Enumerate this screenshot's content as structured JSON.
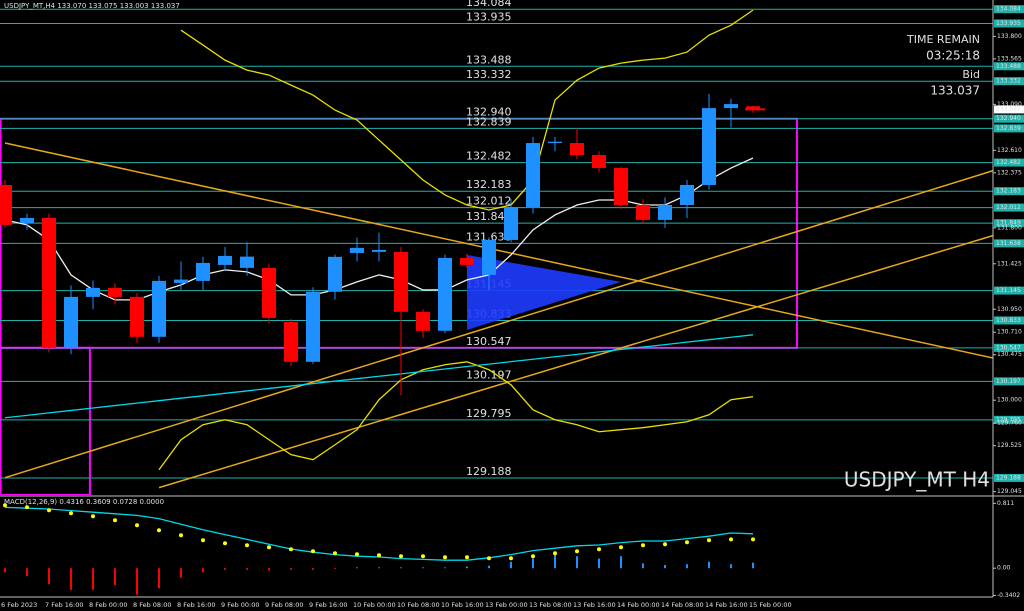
{
  "chart_data": [
    {
      "type": "candlestick",
      "header": "USDJPY_MT,H4  133.070 133.075 133.003 133.037",
      "title": "USDJPY_MT H4",
      "time_remain_label": "TIME REMAIN",
      "time_remain": "03:25:18",
      "bid_label": "Bid",
      "bid": 133.037,
      "categories": [
        "6 Feb 2023",
        null,
        "7 Feb 16:00",
        null,
        "8 Feb 00:00",
        null,
        "8 Feb 08:00",
        null,
        "8 Feb 16:00",
        null,
        "9 Feb 00:00",
        null,
        "9 Feb 08:00",
        null,
        "9 Feb 16:00",
        null,
        "10 Feb 00:00",
        null,
        "10 Feb 08:00",
        null,
        "10 Feb 16:00",
        null,
        "13 Feb 00:00",
        null,
        "13 Feb 08:00",
        null,
        "13 Feb 16:00",
        null,
        "14 Feb 00:00",
        null,
        "14 Feb 08:00",
        null,
        "14 Feb 16:00",
        null,
        "15 Feb 00:00"
      ],
      "open": [
        132.248,
        131.85,
        131.904,
        130.547,
        131.079,
        131.173,
        131.079,
        130.662,
        131.225,
        131.246,
        131.413,
        131.382,
        131.382,
        130.819,
        130.401,
        131.132,
        131.538,
        131.549,
        131.549,
        130.923,
        130.725,
        131.486,
        131.309,
        131.674,
        132.018,
        132.686,
        132.686,
        132.561,
        132.425,
        132.039,
        131.883,
        132.039,
        132.248,
        133.051,
        133.07
      ],
      "high": [
        132.3,
        131.95,
        131.95,
        131.2,
        131.25,
        131.22,
        131.12,
        131.3,
        131.45,
        131.5,
        131.6,
        131.65,
        131.42,
        130.85,
        131.18,
        131.52,
        131.7,
        131.75,
        131.6,
        130.95,
        131.52,
        131.53,
        131.7,
        132.1,
        132.75,
        132.75,
        132.84,
        132.6,
        132.44,
        132.1,
        132.12,
        132.3,
        133.2,
        133.15,
        133.075
      ],
      "low": [
        131.8,
        131.78,
        130.5,
        130.48,
        130.95,
        131,
        130.6,
        130.6,
        131.15,
        131.15,
        131.35,
        131.3,
        130.8,
        130.36,
        130.38,
        131.05,
        131.45,
        131.45,
        130.05,
        130.65,
        130.7,
        131.38,
        131.15,
        131.65,
        131.95,
        132.6,
        132.52,
        132.38,
        132,
        131.85,
        131.8,
        131.9,
        132.2,
        132.85,
        133.003
      ],
      "close": [
        131.831,
        131.904,
        130.547,
        131.079,
        131.173,
        131.079,
        130.662,
        131.246,
        131.26,
        131.434,
        131.507,
        131.5,
        130.86,
        130.401,
        131.132,
        131.497,
        131.591,
        131.57,
        130.923,
        130.725,
        131.486,
        131.413,
        131.674,
        132.018,
        132.686,
        132.7,
        132.561,
        132.425,
        132.039,
        131.883,
        132.039,
        132.248,
        133.051,
        133.093,
        133.037
      ],
      "up_color": "#1e90ff",
      "down_color": "#ff0000",
      "overlays": [
        {
          "color": "#e8e000",
          "values": [
            null,
            null,
            null,
            null,
            null,
            null,
            null,
            null,
            133.865,
            133.709,
            133.552,
            133.448,
            133.396,
            133.291,
            133.187,
            133.03,
            132.926,
            132.717,
            132.509,
            132.3,
            132.144,
            132.039,
            131.987,
            132.039,
            132.3,
            133.135,
            133.343,
            133.469,
            133.521,
            133.552,
            133.573,
            133.636,
            133.813,
            133.917,
            134.074
          ]
        },
        {
          "color": "#e8e000",
          "values": [
            null,
            null,
            null,
            null,
            null,
            null,
            null,
            129.274,
            129.587,
            129.744,
            129.796,
            129.744,
            129.587,
            129.431,
            129.379,
            129.535,
            129.692,
            130.005,
            130.213,
            130.318,
            130.37,
            130.401,
            130.318,
            130.161,
            129.9,
            129.796,
            129.744,
            129.671,
            129.692,
            129.713,
            129.744,
            129.775,
            129.848,
            130.005,
            130.037
          ]
        },
        {
          "color": "#f0f0f0",
          "values": [
            131.883,
            131.831,
            131.674,
            131.309,
            131.152,
            131.048,
            131.048,
            131.132,
            131.205,
            131.309,
            131.361,
            131.34,
            131.257,
            131.1,
            131.1,
            131.152,
            131.236,
            131.309,
            131.257,
            131.152,
            131.152,
            131.257,
            131.309,
            131.518,
            131.779,
            131.935,
            132.039,
            132.091,
            132.091,
            132.039,
            132.039,
            132.144,
            132.3,
            132.425,
            132.53
          ]
        },
        {
          "color": "#00d8e8",
          "values": [
            129.817,
            129.842,
            129.868,
            129.893,
            129.919,
            129.944,
            129.97,
            129.995,
            130.021,
            130.046,
            130.072,
            130.097,
            130.123,
            130.148,
            130.174,
            130.199,
            130.225,
            130.25,
            130.275,
            130.301,
            130.326,
            130.352,
            130.377,
            130.403,
            130.428,
            130.454,
            130.479,
            130.505,
            130.53,
            130.556,
            130.581,
            130.607,
            130.632,
            130.658,
            130.683
          ]
        }
      ],
      "trendlines": [
        {
          "color": "#e6a817",
          "x": [
            0,
            45
          ],
          "y": [
            132.686,
            130.436
          ]
        },
        {
          "color": "#e6a817",
          "x": [
            0,
            45
          ],
          "y": [
            129.191,
            132.404
          ]
        },
        {
          "color": "#e6a817",
          "x": [
            7,
            45
          ],
          "y": [
            129.087,
            131.726
          ]
        }
      ],
      "triangle": {
        "color": "#1e3cff",
        "x": [
          21,
          21,
          28
        ],
        "y": [
          131.517,
          130.735,
          131.236
        ]
      },
      "zones": [
        {
          "color": "#ff00ff",
          "x": [
            -0.2,
            36
          ],
          "y": [
            130.547,
            132.94
          ]
        },
        {
          "color": "#ff00ff",
          "x": [
            -0.2,
            3.86
          ],
          "y": [
            129.01,
            130.547
          ]
        }
      ],
      "level_color": "#20b2aa",
      "levels": [
        134.084,
        133.935,
        133.488,
        133.332,
        {
          "value": 132.94,
          "label": "132.940"
        },
        132.839,
        132.482,
        132.183,
        132.012,
        131.849,
        131.638,
        131.145,
        130.833,
        130.547,
        130.197,
        129.795,
        129.188
      ],
      "ylim": [
        129.01,
        134.18
      ],
      "yticks": [
        {
          "value": 133.8,
          "label": "133.800"
        },
        133.565,
        {
          "value": 133.09,
          "label": "133.090"
        },
        {
          "value": 132.61,
          "label": "132.610"
        },
        132.375,
        {
          "value": 131.8,
          "label": "131.800"
        },
        131.425,
        {
          "value": 130.95,
          "label": "130.950"
        },
        {
          "value": 130.71,
          "label": "130.710"
        },
        130.475,
        {
          "value": 130,
          "label": "130.000"
        },
        {
          "value": 129.76,
          "label": "129.760"
        },
        129.525,
        129.045
      ]
    },
    {
      "type": "macd",
      "title": "MACD(12,26,9) 0.4316 0.3609 0.0728 0.0000",
      "histogram": [
        -0.05,
        -0.1,
        -0.2,
        -0.27,
        -0.27,
        -0.21,
        -0.33,
        -0.25,
        -0.12,
        -0.05,
        -0.02,
        -0.02,
        -0.03,
        -0.02,
        -0.02,
        -0.01,
        0.01,
        0.01,
        0.01,
        0.01,
        0.01,
        0.02,
        0.03,
        0.08,
        0.12,
        0.2,
        0.15,
        0.12,
        0.15,
        0.06,
        0.04,
        0.05,
        0.08,
        0.05,
        0.07
      ],
      "macd": [
        0.76,
        0.75,
        0.74,
        0.72,
        0.7,
        0.68,
        0.66,
        0.62,
        0.55,
        0.48,
        0.42,
        0.36,
        0.3,
        0.24,
        0.2,
        0.17,
        0.15,
        0.14,
        0.12,
        0.11,
        0.1,
        0.1,
        0.13,
        0.17,
        0.22,
        0.25,
        0.28,
        0.29,
        0.32,
        0.34,
        0.34,
        0.37,
        0.4,
        0.44,
        0.43
      ],
      "signal": [
        0.787,
        0.762,
        0.724,
        0.687,
        0.649,
        0.599,
        0.537,
        0.474,
        0.412,
        0.35,
        0.312,
        0.287,
        0.262,
        0.237,
        0.212,
        0.187,
        0.175,
        0.162,
        0.15,
        0.15,
        0.137,
        0.137,
        0.125,
        0.125,
        0.15,
        0.187,
        0.212,
        0.237,
        0.262,
        0.287,
        0.3,
        0.325,
        0.35,
        0.36,
        0.361
      ],
      "macd_color": "#00d8e8",
      "signal_color": "#ffff00",
      "up_color": "#1e90ff",
      "down_color": "#ff0000",
      "ylim": [
        -0.36,
        0.89
      ],
      "yticks": [
        0.811,
        {
          "value": 0,
          "label": "0.00"
        },
        -0.3402
      ]
    }
  ]
}
